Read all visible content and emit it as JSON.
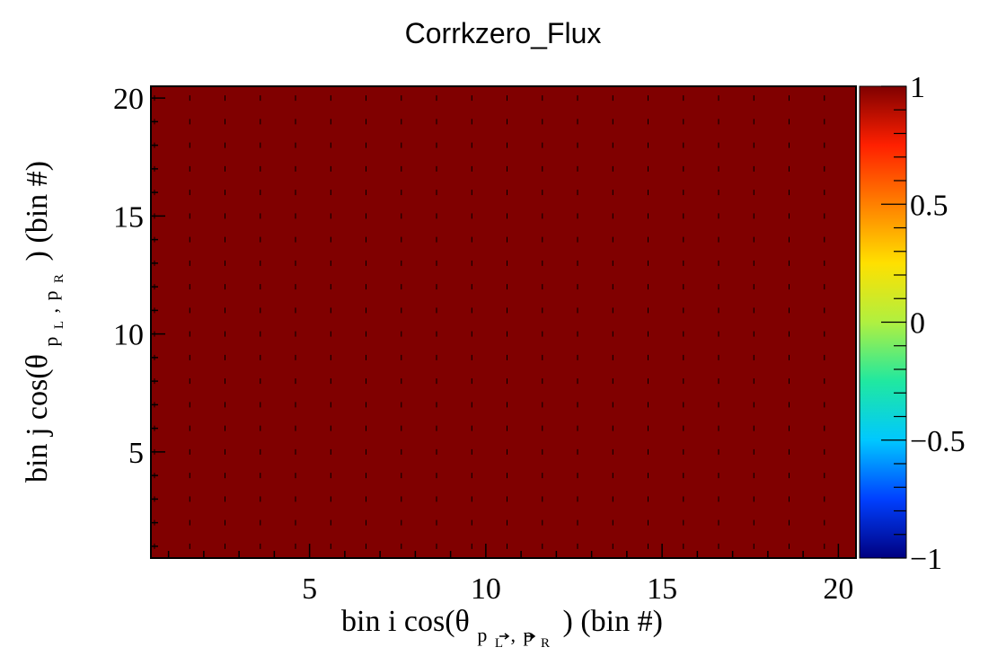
{
  "chart_data": {
    "type": "heatmap",
    "title": "Corrkzero_Flux",
    "xlabel": {
      "prefix": "bin i cos(θ",
      "sub_p1": "p",
      "sub_p1_index": "L",
      "sub_sep": ",",
      "sub_p2": "p",
      "sub_p2_index": "R",
      "suffix": ") (bin #)"
    },
    "ylabel": {
      "prefix": "bin j cos(θ",
      "sub_p1": "p",
      "sub_p1_index": "L",
      "sub_sep": ",",
      "sub_p2": "p",
      "sub_p2_index": "R",
      "suffix": ") (bin #)"
    },
    "xlim": [
      0.5,
      20.5
    ],
    "ylim": [
      0.5,
      20.5
    ],
    "x_ticks": [
      "5",
      "10",
      "15",
      "20"
    ],
    "y_ticks": [
      "5",
      "10",
      "15",
      "20"
    ],
    "nbins_x": 20,
    "nbins_y": 20,
    "cell_value": 1,
    "zlim": [
      -1,
      1
    ],
    "z_ticks": [
      "1",
      "0.5",
      "0",
      "−0.5",
      "−1"
    ],
    "colormap": [
      "#000080",
      "#0040ff",
      "#00c8ff",
      "#20e8a0",
      "#b0f040",
      "#ffe000",
      "#ff8000",
      "#ff2000",
      "#800000"
    ],
    "cell_color": "#800000"
  }
}
